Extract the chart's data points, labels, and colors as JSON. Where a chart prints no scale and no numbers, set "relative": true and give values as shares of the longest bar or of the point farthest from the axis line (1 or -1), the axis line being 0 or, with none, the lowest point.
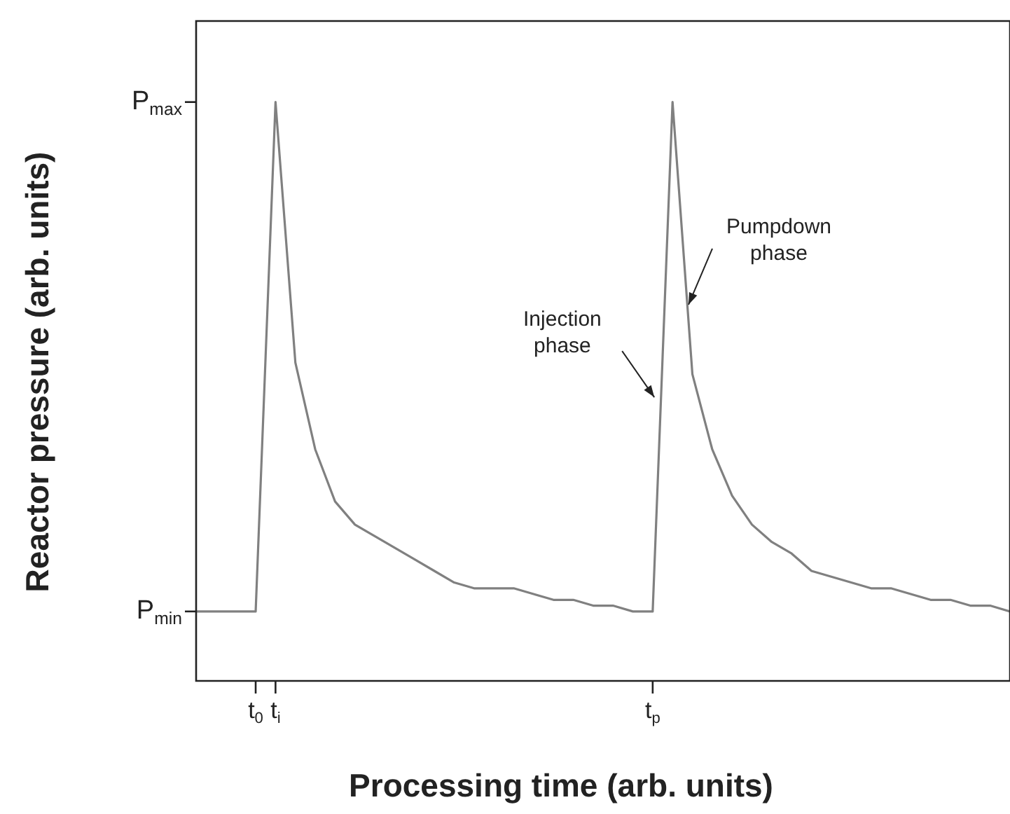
{
  "chart_data": {
    "type": "line",
    "relative": true,
    "xlabel": "Processing time (arb. units)",
    "ylabel": "Reactor pressure (arb. units)",
    "categories": [
      null,
      null,
      null,
      "t$_{0}$",
      "t$_{i}$",
      null,
      null,
      null,
      null,
      null,
      null,
      null,
      null,
      null,
      null,
      null,
      null,
      null,
      null,
      null,
      null,
      null,
      null,
      "t$_{p}$",
      null,
      null,
      null,
      null,
      null,
      null,
      null,
      null,
      null,
      null,
      null,
      null,
      null,
      null,
      null,
      null,
      null,
      null
    ],
    "series": [
      {
        "color": "#808080",
        "values": [
          0.12,
          0.12,
          0.12,
          0.12,
          1,
          0.55,
          0.4,
          0.31,
          0.27,
          0.25,
          0.23,
          0.21,
          0.19,
          0.17,
          0.16,
          0.16,
          0.16,
          0.15,
          0.14,
          0.14,
          0.13,
          0.13,
          0.12,
          0.12,
          1,
          0.53,
          0.4,
          0.32,
          0.27,
          0.24,
          0.22,
          0.19,
          0.18,
          0.17,
          0.16,
          0.16,
          0.15,
          0.14,
          0.14,
          0.13,
          0.13,
          0.12
        ]
      }
    ],
    "annotations": [
      "P$_{min}$",
      "P$_{max}$",
      "Injection phase",
      "Pumpdown phase"
    ],
    "marker": "none",
    "line_style": "solid"
  }
}
